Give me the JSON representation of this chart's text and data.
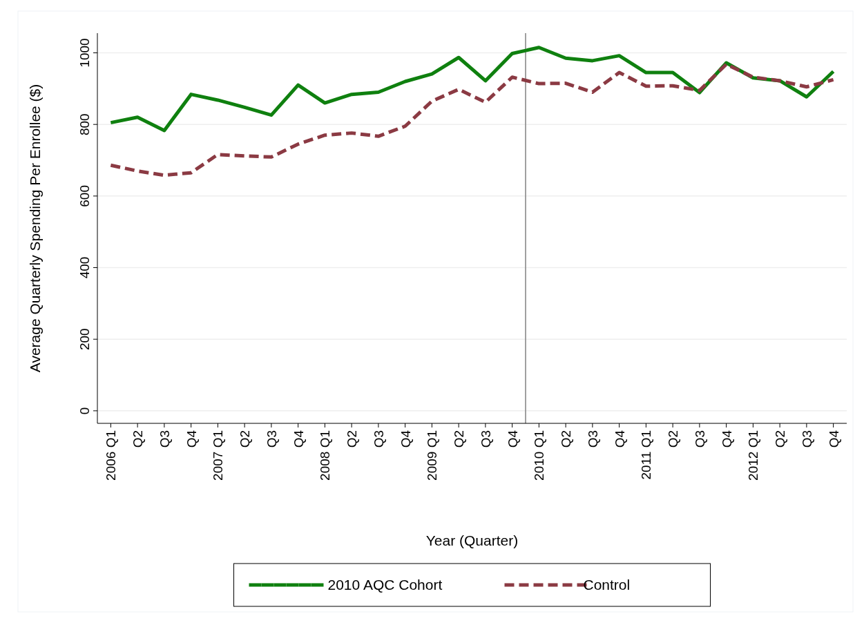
{
  "chart_data": {
    "type": "line",
    "xlabel": "Year (Quarter)",
    "ylabel": "Average Quarterly Spending Per Enrollee ($)",
    "categories": [
      "2006 Q1",
      "Q2",
      "Q3",
      "Q4",
      "2007 Q1",
      "Q2",
      "Q3",
      "Q4",
      "2008 Q1",
      "Q2",
      "Q3",
      "Q4",
      "2009 Q1",
      "Q2",
      "Q3",
      "Q4",
      "2010 Q1",
      "Q2",
      "Q3",
      "Q4",
      "2011 Q1",
      "Q2",
      "Q3",
      "Q4",
      "2012 Q1",
      "Q2",
      "Q3",
      "Q4"
    ],
    "ylim": [
      -35,
      1055
    ],
    "yticks": [
      0,
      200,
      400,
      600,
      800,
      1000
    ],
    "grid": "y",
    "legend": "bottom",
    "ref_lines": [
      {
        "axis": "x",
        "value": "2010 Q1",
        "color": "#808080"
      }
    ],
    "series": [
      {
        "name": "2010 AQC Cohort",
        "color": "#0f800f",
        "line_style": "solid",
        "values": [
          805,
          820,
          783,
          884,
          868,
          848,
          826,
          910,
          860,
          884,
          890,
          920,
          941,
          987,
          922,
          998,
          1015,
          985,
          978,
          992,
          945,
          945,
          889,
          972,
          930,
          922,
          877,
          948
        ]
      },
      {
        "name": "Control",
        "color": "#8b3a43",
        "line_style": "dashed",
        "values": [
          686,
          670,
          658,
          665,
          716,
          712,
          709,
          745,
          770,
          776,
          767,
          795,
          865,
          898,
          862,
          932,
          914,
          915,
          890,
          945,
          907,
          908,
          895,
          968,
          932,
          922,
          905,
          925
        ]
      }
    ]
  }
}
